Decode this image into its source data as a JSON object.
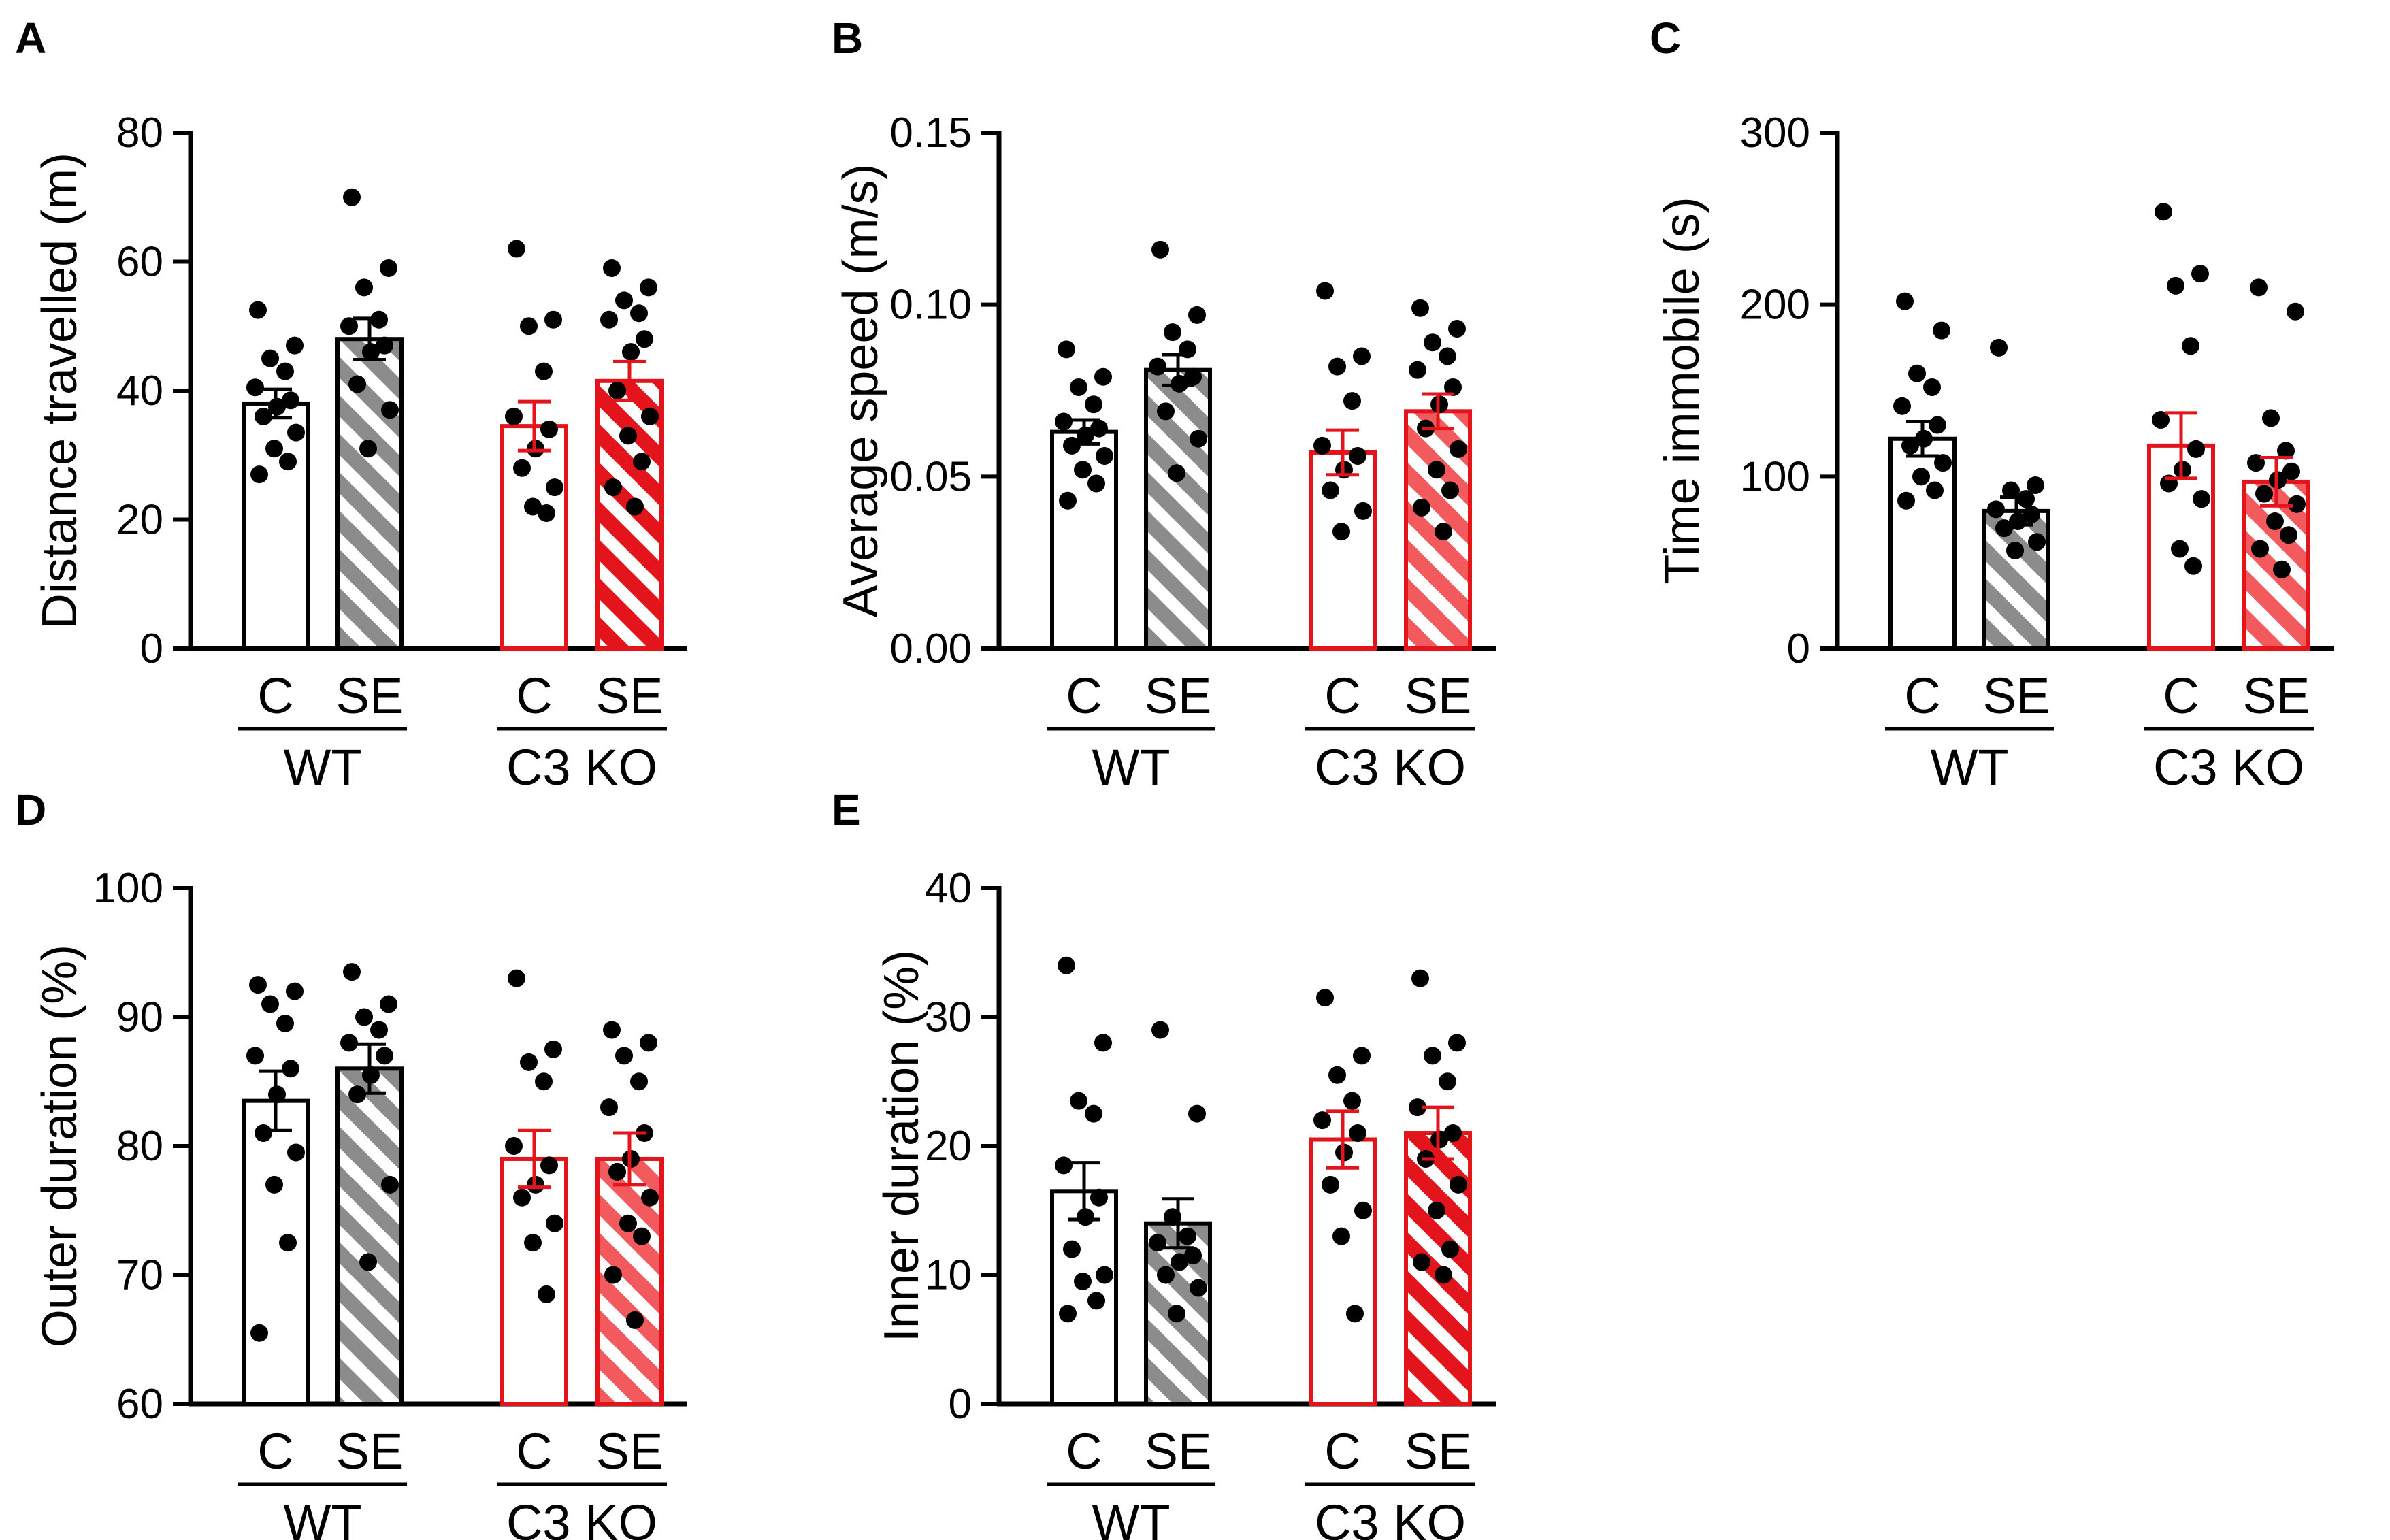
{
  "figure": {
    "colors": {
      "wt": "#000000",
      "wt_se_stripe": "#8c8c8c",
      "ko": "#e3141b",
      "ko_c_se_light": "#f25a5e",
      "dot": "#000000"
    }
  },
  "chart_data": [
    {
      "panel": "A",
      "type": "bar",
      "ylabel": "Distance travelled (m)",
      "ylim": [
        0,
        80
      ],
      "yticks": [
        "0",
        "20",
        "40",
        "60",
        "80"
      ],
      "categories": [
        "C",
        "SE",
        "C",
        "SE"
      ],
      "groups": [
        "WT",
        "C3 KO"
      ],
      "series": [
        {
          "name": "WT C",
          "mean": 38,
          "sem": 2.2,
          "points": [
            52.5,
            47,
            45,
            43,
            40.5,
            38.5,
            37.5,
            36,
            33.5,
            31,
            29,
            27
          ]
        },
        {
          "name": "WT SE",
          "mean": 48,
          "sem": 3.2,
          "points": [
            70,
            59,
            56,
            51,
            50,
            47,
            46,
            41,
            37,
            31
          ]
        },
        {
          "name": "C3 KO C",
          "mean": 34.5,
          "sem": 3.8,
          "points": [
            62,
            51,
            50,
            43,
            36,
            34,
            31,
            28,
            25,
            22,
            21
          ]
        },
        {
          "name": "C3 KO SE",
          "mean": 41.5,
          "sem": 3.0,
          "points": [
            59,
            56,
            54,
            52,
            51,
            48,
            46,
            40,
            36,
            33,
            29,
            25,
            22
          ]
        }
      ]
    },
    {
      "panel": "B",
      "type": "bar",
      "ylabel": "Average speed (m/s)",
      "ylim": [
        0,
        0.15
      ],
      "yticks": [
        "0.00",
        "0.05",
        "0.10",
        "0.15"
      ],
      "categories": [
        "C",
        "SE",
        "C",
        "SE"
      ],
      "groups": [
        "WT",
        "C3 KO"
      ],
      "series": [
        {
          "name": "WT C",
          "mean": 0.063,
          "sem": 0.0035,
          "points": [
            0.087,
            0.079,
            0.076,
            0.071,
            0.066,
            0.064,
            0.062,
            0.059,
            0.056,
            0.052,
            0.048,
            0.043
          ]
        },
        {
          "name": "WT SE",
          "mean": 0.081,
          "sem": 0.0045,
          "points": [
            0.116,
            0.097,
            0.092,
            0.087,
            0.082,
            0.079,
            0.077,
            0.069,
            0.061,
            0.051
          ]
        },
        {
          "name": "C3 KO C",
          "mean": 0.057,
          "sem": 0.0065,
          "points": [
            0.104,
            0.085,
            0.082,
            0.072,
            0.059,
            0.056,
            0.052,
            0.046,
            0.04,
            0.034
          ]
        },
        {
          "name": "C3 KO SE",
          "mean": 0.069,
          "sem": 0.005,
          "points": [
            0.099,
            0.093,
            0.089,
            0.085,
            0.081,
            0.076,
            0.071,
            0.064,
            0.058,
            0.052,
            0.046,
            0.041,
            0.034
          ]
        }
      ]
    },
    {
      "panel": "C",
      "type": "bar",
      "ylabel": "Time immobile (s)",
      "ylim": [
        0,
        300
      ],
      "yticks": [
        "0",
        "100",
        "200",
        "300"
      ],
      "categories": [
        "C",
        "SE",
        "C",
        "SE"
      ],
      "groups": [
        "WT",
        "C3 KO"
      ],
      "series": [
        {
          "name": "WT C",
          "mean": 122,
          "sem": 10,
          "points": [
            202,
            185,
            160,
            152,
            141,
            130,
            122,
            118,
            108,
            100,
            92,
            86
          ]
        },
        {
          "name": "WT SE",
          "mean": 80,
          "sem": 8,
          "points": [
            175,
            95,
            92,
            87,
            81,
            78,
            74,
            70,
            62,
            57
          ]
        },
        {
          "name": "C3 KO C",
          "mean": 118,
          "sem": 19,
          "points": [
            254,
            218,
            211,
            176,
            133,
            116,
            104,
            96,
            87,
            58,
            48
          ]
        },
        {
          "name": "C3 KO SE",
          "mean": 97,
          "sem": 14,
          "points": [
            210,
            196,
            134,
            115,
            108,
            103,
            98,
            90,
            84,
            74,
            66,
            58,
            46
          ]
        }
      ]
    },
    {
      "panel": "D",
      "type": "bar",
      "ylabel": "Outer duration (%)",
      "ylim": [
        60,
        100
      ],
      "yticks": [
        "60",
        "70",
        "80",
        "90",
        "100"
      ],
      "categories": [
        "C",
        "SE",
        "C",
        "SE"
      ],
      "groups": [
        "WT",
        "C3 KO"
      ],
      "series": [
        {
          "name": "WT C",
          "mean": 83.5,
          "sem": 2.3,
          "points": [
            92.5,
            92,
            91,
            89.5,
            87,
            86,
            84,
            81,
            79.5,
            77,
            72.5,
            65.5
          ]
        },
        {
          "name": "WT SE",
          "mean": 86,
          "sem": 1.9,
          "points": [
            93.5,
            91,
            90,
            89,
            88,
            87,
            85.5,
            84,
            77,
            71
          ]
        },
        {
          "name": "C3 KO C",
          "mean": 79,
          "sem": 2.2,
          "points": [
            93,
            87.5,
            86.5,
            85,
            80,
            78.5,
            77,
            76,
            74,
            72.5,
            68.5
          ]
        },
        {
          "name": "C3 KO SE",
          "mean": 79,
          "sem": 2.0,
          "points": [
            89,
            88,
            87,
            85,
            83,
            81,
            79,
            78,
            76,
            74,
            73,
            70,
            66.5
          ]
        }
      ]
    },
    {
      "panel": "E",
      "type": "bar",
      "ylabel": "Inner duration (%)",
      "ylim": [
        0,
        40
      ],
      "yticks": [
        "0",
        "10",
        "20",
        "30",
        "40"
      ],
      "categories": [
        "C",
        "SE",
        "C",
        "SE"
      ],
      "groups": [
        "WT",
        "C3 KO"
      ],
      "series": [
        {
          "name": "WT C",
          "mean": 16.5,
          "sem": 2.2,
          "points": [
            34,
            28,
            23.5,
            22.5,
            18.5,
            16,
            14.5,
            12,
            10,
            9.5,
            8,
            7
          ]
        },
        {
          "name": "WT SE",
          "mean": 14,
          "sem": 1.9,
          "points": [
            29,
            22.5,
            14.5,
            13,
            12.5,
            11.5,
            11,
            10,
            9,
            7
          ]
        },
        {
          "name": "C3 KO C",
          "mean": 20.5,
          "sem": 2.2,
          "points": [
            31.5,
            27,
            25.5,
            23.5,
            22,
            21,
            19.5,
            17,
            15,
            13,
            7
          ]
        },
        {
          "name": "C3 KO SE",
          "mean": 21,
          "sem": 2.0,
          "points": [
            33,
            28,
            27,
            25,
            23,
            21,
            20.5,
            19,
            17,
            15,
            12,
            11,
            10
          ]
        }
      ]
    }
  ]
}
